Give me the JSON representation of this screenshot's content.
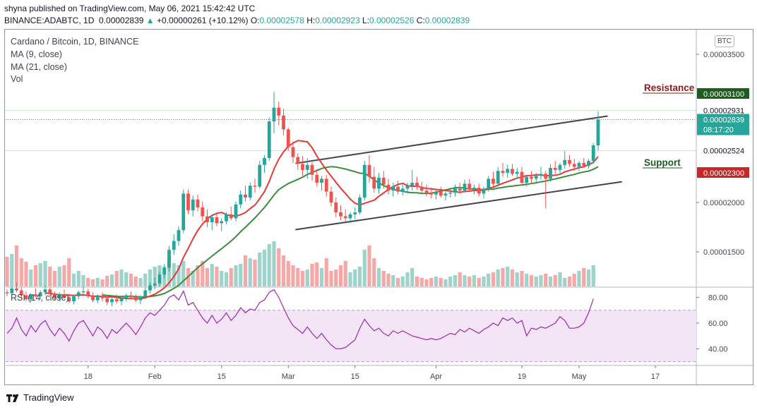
{
  "header": {
    "published": "shyna published on TradingView.com, May 06, 2021 15:42:42 UTC",
    "symbol": "BINANCE:ADABTC, 1D",
    "last": "0.00002839",
    "arrow": "▲",
    "change": "+0.00000261 (+10.12%)",
    "o_label": "O:",
    "o": "0.00002578",
    "h_label": "H:",
    "h": "0.00002923",
    "l_label": "L:",
    "l": "0.00002526",
    "c_label": "C:",
    "c": "0.00002839"
  },
  "legend": {
    "title": "Cardano / Bitcoin, 1D, BINANCE",
    "ma9": "MA (9, close)",
    "ma21": "MA (21, close)",
    "vol": "Vol",
    "rsi": "RSI (14, close)"
  },
  "currency_badge": "BTC",
  "annotations": {
    "resistance": "Resistance",
    "support": "Support"
  },
  "footer": {
    "brand": "TradingView"
  },
  "colors": {
    "up": "#26a69a",
    "down": "#ef5350",
    "ma9": "#e53935",
    "ma21": "#388e3c",
    "resistance_label": "#8b1a1a",
    "support_label": "#1b5e20",
    "rsi_line": "#9c27b0",
    "rsi_band": "#f3e5f5",
    "price_badge": "#26a69a",
    "resistance_badge": "#1b5e20",
    "support_badge": "#c62828"
  },
  "chart_data": {
    "type": "candlestick",
    "ylim": [
      1.15e-05,
      3.75e-05
    ],
    "y_ticks": [
      "0.00003500",
      "0.00002000",
      "0.00001500"
    ],
    "y_tick_values": [
      3.5e-05,
      2e-05,
      1.5e-05
    ],
    "price_labels": [
      {
        "text": "0.00003100",
        "value": 3.1e-05,
        "kind": "resistance"
      },
      {
        "text": "0.00002931",
        "value": 2.931e-05,
        "kind": "plain"
      },
      {
        "text": "0.00002839",
        "value": 2.839e-05,
        "kind": "current",
        "sub": "08:17:20"
      },
      {
        "text": "0.00002524",
        "value": 2.524e-05,
        "kind": "plain"
      },
      {
        "text": "0.00002300",
        "value": 2.3e-05,
        "kind": "support"
      }
    ],
    "x_ticks": [
      "18",
      "Feb",
      "15",
      "Mar",
      "15",
      "Apr",
      "19",
      "May",
      "17"
    ],
    "x_tick_days": [
      17,
      31,
      45,
      59,
      73,
      90,
      108,
      120,
      136
    ],
    "first_day": 0,
    "ohlc": [
      [
        1.09e-05,
        1.12e-05,
        1.05e-05,
        1.08e-05
      ],
      [
        1.08e-05,
        1.15e-05,
        1.06e-05,
        1.13e-05
      ],
      [
        1.13e-05,
        1.19e-05,
        1.09e-05,
        1.11e-05
      ],
      [
        1.11e-05,
        1.14e-05,
        1.04e-05,
        1.06e-05
      ],
      [
        1.06e-05,
        1.1e-05,
        1e-05,
        1.02e-05
      ],
      [
        1.02e-05,
        1.08e-05,
        9.9e-06,
        1.07e-05
      ],
      [
        1.07e-05,
        1.13e-05,
        1.04e-05,
        1.05e-05
      ],
      [
        1.05e-05,
        1.11e-05,
        1.02e-05,
        1.09e-05
      ],
      [
        1.09e-05,
        1.16e-05,
        1.06e-05,
        1.12e-05
      ],
      [
        1.12e-05,
        1.14e-05,
        1.06e-05,
        1.08e-05
      ],
      [
        1.08e-05,
        1.1e-05,
        1.01e-05,
        1.03e-05
      ],
      [
        1.03e-05,
        1.09e-05,
        1e-05,
        1.07e-05
      ],
      [
        1.07e-05,
        1.12e-05,
        1.03e-05,
        1.04e-05
      ],
      [
        1.04e-05,
        1.08e-05,
        9.8e-06,
        1e-05
      ],
      [
        1e-05,
        1.06e-05,
        9.7e-06,
        1.05e-05
      ],
      [
        1.05e-05,
        1.11e-05,
        1.02e-05,
        1.09e-05
      ],
      [
        1.09e-05,
        1.15e-05,
        1.05e-05,
        1.1e-05
      ],
      [
        1.1e-05,
        1.13e-05,
        1.03e-05,
        1.06e-05
      ],
      [
        1.06e-05,
        1.09e-05,
        9.9e-06,
        1.01e-05
      ],
      [
        1.01e-05,
        1.07e-05,
        9.8e-06,
        1.05e-05
      ],
      [
        1.05e-05,
        1.09e-05,
        1e-05,
        1.03e-05
      ],
      [
        1.03e-05,
        1.06e-05,
        9.6e-06,
        9.9e-06
      ],
      [
        9.9e-06,
        1.04e-05,
        9.5e-06,
        1.02e-05
      ],
      [
        1.02e-05,
        1.07e-05,
        9.8e-06,
        1e-05
      ],
      [
        1e-05,
        1.05e-05,
        9.6e-06,
        1.03e-05
      ],
      [
        1.03e-05,
        1.08e-05,
        1e-05,
        1.06e-05
      ],
      [
        1.06e-05,
        1.1e-05,
        1.02e-05,
        1.04e-05
      ],
      [
        1.04e-05,
        1.07e-05,
        9.9e-06,
        1.01e-05
      ],
      [
        1.01e-05,
        1.06e-05,
        9.7e-06,
        1.05e-05
      ],
      [
        1.05e-05,
        1.14e-05,
        1.03e-05,
        1.11e-05
      ],
      [
        1.11e-05,
        1.19e-05,
        1.08e-05,
        1.16e-05
      ],
      [
        1.16e-05,
        1.24e-05,
        1.12e-05,
        1.18e-05
      ],
      [
        1.18e-05,
        1.3e-05,
        1.15e-05,
        1.27e-05
      ],
      [
        1.27e-05,
        1.38e-05,
        1.23e-05,
        1.34e-05
      ],
      [
        1.34e-05,
        1.56e-05,
        1.3e-05,
        1.52e-05
      ],
      [
        1.52e-05,
        1.68e-05,
        1.47e-05,
        1.61e-05
      ],
      [
        1.61e-05,
        1.76e-05,
        1.56e-05,
        1.72e-05
      ],
      [
        1.72e-05,
        2.13e-05,
        1.69e-05,
        2.09e-05
      ],
      [
        2.09e-05,
        2.13e-05,
        1.88e-05,
        1.92e-05
      ],
      [
        1.92e-05,
        2.07e-05,
        1.86e-05,
        2.03e-05
      ],
      [
        2.03e-05,
        2.08e-05,
        1.91e-05,
        1.95e-05
      ],
      [
        1.95e-05,
        2.01e-05,
        1.81e-05,
        1.86e-05
      ],
      [
        1.86e-05,
        1.93e-05,
        1.75e-05,
        1.8e-05
      ],
      [
        1.8e-05,
        1.88e-05,
        1.72e-05,
        1.85e-05
      ],
      [
        1.85e-05,
        1.9e-05,
        1.76e-05,
        1.79e-05
      ],
      [
        1.79e-05,
        1.84e-05,
        1.71e-05,
        1.81e-05
      ],
      [
        1.81e-05,
        1.9e-05,
        1.78e-05,
        1.88e-05
      ],
      [
        1.88e-05,
        1.96e-05,
        1.82e-05,
        1.84e-05
      ],
      [
        1.84e-05,
        2.01e-05,
        1.81e-05,
        1.98e-05
      ],
      [
        1.98e-05,
        2.12e-05,
        1.94e-05,
        2.08e-05
      ],
      [
        2.08e-05,
        2.17e-05,
        2.01e-05,
        2.05e-05
      ],
      [
        2.05e-05,
        2.2e-05,
        2.02e-05,
        2.17e-05
      ],
      [
        2.17e-05,
        2.24e-05,
        2.1e-05,
        2.16e-05
      ],
      [
        2.16e-05,
        2.42e-05,
        2.14e-05,
        2.38e-05
      ],
      [
        2.38e-05,
        2.48e-05,
        2.3e-05,
        2.45e-05
      ],
      [
        2.45e-05,
        2.86e-05,
        2.42e-05,
        2.82e-05
      ],
      [
        2.82e-05,
        3.12e-05,
        2.7e-05,
        2.96e-05
      ],
      [
        2.96e-05,
        3.02e-05,
        2.78e-05,
        2.88e-05
      ],
      [
        2.88e-05,
        2.95e-05,
        2.68e-05,
        2.74e-05
      ],
      [
        2.74e-05,
        2.76e-05,
        2.52e-05,
        2.56e-05
      ],
      [
        2.56e-05,
        2.62e-05,
        2.4e-05,
        2.46e-05
      ],
      [
        2.46e-05,
        2.5e-05,
        2.33e-05,
        2.39e-05
      ],
      [
        2.39e-05,
        2.47e-05,
        2.27e-05,
        2.33e-05
      ],
      [
        2.33e-05,
        2.45e-05,
        2.24e-05,
        2.38e-05
      ],
      [
        2.38e-05,
        2.41e-05,
        2.22e-05,
        2.28e-05
      ],
      [
        2.28e-05,
        2.34e-05,
        2.16e-05,
        2.2e-05
      ],
      [
        2.2e-05,
        2.27e-05,
        2.12e-05,
        2.24e-05
      ],
      [
        2.24e-05,
        2.28e-05,
        2.06e-05,
        2.11e-05
      ],
      [
        2.11e-05,
        2.16e-05,
        1.96e-05,
        2e-05
      ],
      [
        2e-05,
        2.05e-05,
        1.85e-05,
        1.9e-05
      ],
      [
        1.9e-05,
        1.97e-05,
        1.82e-05,
        1.86e-05
      ],
      [
        1.86e-05,
        1.93e-05,
        1.8e-05,
        1.84e-05
      ],
      [
        1.84e-05,
        1.9e-05,
        1.79e-05,
        1.88e-05
      ],
      [
        1.88e-05,
        1.95e-05,
        1.83e-05,
        1.9e-05
      ],
      [
        1.9e-05,
        2.08e-05,
        1.88e-05,
        2.05e-05
      ],
      [
        2.05e-05,
        2.42e-05,
        2.02e-05,
        2.38e-05
      ],
      [
        2.38e-05,
        2.48e-05,
        2.2e-05,
        2.26e-05
      ],
      [
        2.26e-05,
        2.36e-05,
        2.1e-05,
        2.14e-05
      ],
      [
        2.14e-05,
        2.3e-05,
        2.09e-05,
        2.25e-05
      ],
      [
        2.25e-05,
        2.32e-05,
        2.14e-05,
        2.18e-05
      ],
      [
        2.18e-05,
        2.24e-05,
        2.08e-05,
        2.12e-05
      ],
      [
        2.12e-05,
        2.2e-05,
        2.06e-05,
        2.16e-05
      ],
      [
        2.16e-05,
        2.22e-05,
        2.08e-05,
        2.11e-05
      ],
      [
        2.11e-05,
        2.18e-05,
        2.07e-05,
        2.14e-05
      ],
      [
        2.14e-05,
        2.2e-05,
        2.09e-05,
        2.17e-05
      ],
      [
        2.17e-05,
        2.33e-05,
        2.12e-05,
        2.2e-05
      ],
      [
        2.2e-05,
        2.26e-05,
        2.13e-05,
        2.16e-05
      ],
      [
        2.16e-05,
        2.21e-05,
        2.09e-05,
        2.12e-05
      ],
      [
        2.12e-05,
        2.18e-05,
        2.06e-05,
        2.1e-05
      ],
      [
        2.1e-05,
        2.15e-05,
        2.04e-05,
        2.08e-05
      ],
      [
        2.08e-05,
        2.14e-05,
        2.03e-05,
        2.11e-05
      ],
      [
        2.11e-05,
        2.16e-05,
        2.05e-05,
        2.07e-05
      ],
      [
        2.07e-05,
        2.12e-05,
        2.02e-05,
        2.09e-05
      ],
      [
        2.09e-05,
        2.15e-05,
        2.05e-05,
        2.1e-05
      ],
      [
        2.1e-05,
        2.18e-05,
        2.06e-05,
        2.14e-05
      ],
      [
        2.14e-05,
        2.2e-05,
        2.09e-05,
        2.12e-05
      ],
      [
        2.12e-05,
        2.23e-05,
        2.1e-05,
        2.19e-05
      ],
      [
        2.19e-05,
        2.24e-05,
        2.11e-05,
        2.13e-05
      ],
      [
        2.13e-05,
        2.18e-05,
        2.08e-05,
        2.15e-05
      ],
      [
        2.15e-05,
        2.19e-05,
        2.06e-05,
        2.09e-05
      ],
      [
        2.09e-05,
        2.16e-05,
        2.04e-05,
        2.14e-05
      ],
      [
        2.14e-05,
        2.27e-05,
        2.11e-05,
        2.24e-05
      ],
      [
        2.24e-05,
        2.31e-05,
        2.16e-05,
        2.19e-05
      ],
      [
        2.19e-05,
        2.36e-05,
        2.16e-05,
        2.32e-05
      ],
      [
        2.32e-05,
        2.4e-05,
        2.26e-05,
        2.3e-05
      ],
      [
        2.3e-05,
        2.38e-05,
        2.25e-05,
        2.34e-05
      ],
      [
        2.34e-05,
        2.39e-05,
        2.27e-05,
        2.29e-05
      ],
      [
        2.29e-05,
        2.35e-05,
        2.24e-05,
        2.31e-05
      ],
      [
        2.31e-05,
        2.36e-05,
        2.17e-05,
        2.2e-05
      ],
      [
        2.2e-05,
        2.28e-05,
        2.16e-05,
        2.26e-05
      ],
      [
        2.26e-05,
        2.32e-05,
        2.2e-05,
        2.24e-05
      ],
      [
        2.24e-05,
        2.3e-05,
        2.19e-05,
        2.27e-05
      ],
      [
        2.27e-05,
        2.36e-05,
        2.23e-05,
        2.29e-05
      ],
      [
        2.29e-05,
        2.32e-05,
        1.94e-05,
        2.24e-05
      ],
      [
        2.24e-05,
        2.39e-05,
        2.21e-05,
        2.35e-05
      ],
      [
        2.35e-05,
        2.42e-05,
        2.29e-05,
        2.33e-05
      ],
      [
        2.33e-05,
        2.4e-05,
        2.28e-05,
        2.38e-05
      ],
      [
        2.38e-05,
        2.52e-05,
        2.34e-05,
        2.43e-05
      ],
      [
        2.43e-05,
        2.48e-05,
        2.36e-05,
        2.39e-05
      ],
      [
        2.39e-05,
        2.44e-05,
        2.32e-05,
        2.36e-05
      ],
      [
        2.36e-05,
        2.42e-05,
        2.32e-05,
        2.4e-05
      ],
      [
        2.4e-05,
        2.45e-05,
        2.35e-05,
        2.37e-05
      ],
      [
        2.37e-05,
        2.44e-05,
        2.34e-05,
        2.42e-05
      ],
      [
        2.42e-05,
        2.6e-05,
        2.39e-05,
        2.578e-05
      ],
      [
        2.578e-05,
        2.923e-05,
        2.526e-05,
        2.839e-05
      ]
    ],
    "volume": [
      0.42,
      0.46,
      0.58,
      0.4,
      0.35,
      0.24,
      0.3,
      0.33,
      0.36,
      0.28,
      0.22,
      0.28,
      0.3,
      0.4,
      0.18,
      0.22,
      0.16,
      0.12,
      0.1,
      0.12,
      0.1,
      0.15,
      0.17,
      0.22,
      0.24,
      0.2,
      0.18,
      0.14,
      0.12,
      0.18,
      0.24,
      0.28,
      0.3,
      0.28,
      0.42,
      0.33,
      0.3,
      0.36,
      0.26,
      0.22,
      0.3,
      0.36,
      0.26,
      0.32,
      0.28,
      0.22,
      0.2,
      0.26,
      0.3,
      0.32,
      0.44,
      0.4,
      0.38,
      0.48,
      0.52,
      0.6,
      0.64,
      0.54,
      0.44,
      0.36,
      0.3,
      0.26,
      0.22,
      0.24,
      0.32,
      0.34,
      0.26,
      0.4,
      0.22,
      0.24,
      0.3,
      0.36,
      0.2,
      0.24,
      0.28,
      0.52,
      0.58,
      0.4,
      0.26,
      0.22,
      0.18,
      0.16,
      0.12,
      0.14,
      0.2,
      0.26,
      0.14,
      0.12,
      0.1,
      0.12,
      0.14,
      0.12,
      0.1,
      0.14,
      0.16,
      0.2,
      0.16,
      0.14,
      0.16,
      0.12,
      0.14,
      0.18,
      0.2,
      0.24,
      0.26,
      0.28,
      0.24,
      0.2,
      0.22,
      0.18,
      0.16,
      0.14,
      0.16,
      0.18,
      0.14,
      0.16,
      0.2,
      0.12,
      0.14,
      0.18,
      0.22,
      0.26,
      0.24,
      0.3
    ],
    "rsi": {
      "ylim": [
        27,
        88
      ],
      "ticks": [
        "80.00",
        "60.00",
        "40.00"
      ],
      "tick_values": [
        80,
        60,
        40
      ],
      "band": [
        30,
        70
      ],
      "values": [
        52,
        56,
        64,
        55,
        50,
        58,
        53,
        59,
        62,
        55,
        50,
        56,
        52,
        46,
        54,
        60,
        62,
        56,
        50,
        57,
        54,
        48,
        55,
        52,
        56,
        60,
        56,
        51,
        57,
        64,
        68,
        66,
        70,
        74,
        80,
        82,
        78,
        85,
        74,
        76,
        70,
        64,
        60,
        66,
        60,
        63,
        68,
        62,
        66,
        72,
        68,
        71,
        70,
        76,
        78,
        84,
        86,
        80,
        72,
        64,
        58,
        55,
        52,
        57,
        52,
        48,
        52,
        47,
        43,
        40,
        40,
        41,
        44,
        47,
        56,
        63,
        58,
        54,
        56,
        52,
        50,
        54,
        52,
        54,
        52,
        50,
        49,
        48,
        47,
        48,
        47,
        48,
        50,
        52,
        51,
        55,
        53,
        56,
        54,
        52,
        55,
        57,
        60,
        58,
        64,
        62,
        64,
        60,
        62,
        50,
        56,
        55,
        57,
        56,
        58,
        60,
        65,
        62,
        56,
        56,
        57,
        60,
        68,
        79
      ]
    },
    "ma9_label": "MA (9, close)",
    "ma21_label": "MA (21, close)"
  }
}
